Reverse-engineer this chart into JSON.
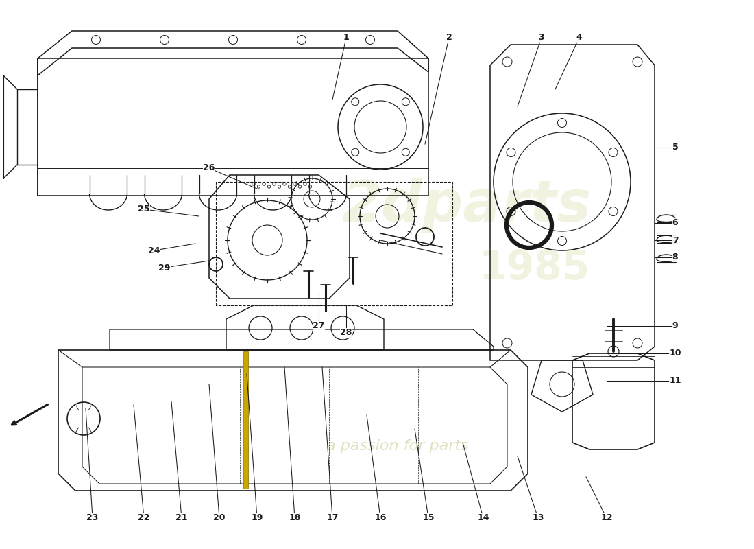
{
  "background_color": "#ffffff",
  "line_color": "#1a1a1a",
  "watermark_color1": "#e8e8c8",
  "watermark_color2": "#d8d8b0",
  "figsize": [
    11.0,
    8.0
  ],
  "dpi": 100,
  "part_labels": [
    [
      1,
      4.85,
      6.55,
      5.05,
      7.45
    ],
    [
      2,
      6.2,
      5.9,
      6.55,
      7.45
    ],
    [
      3,
      7.55,
      6.45,
      7.9,
      7.45
    ],
    [
      4,
      8.1,
      6.7,
      8.45,
      7.45
    ],
    [
      5,
      9.55,
      5.85,
      9.85,
      5.85
    ],
    [
      6,
      9.55,
      4.75,
      9.85,
      4.75
    ],
    [
      7,
      9.55,
      4.5,
      9.85,
      4.5
    ],
    [
      8,
      9.55,
      4.25,
      9.85,
      4.25
    ],
    [
      9,
      8.85,
      3.25,
      9.85,
      3.25
    ],
    [
      10,
      8.85,
      2.85,
      9.85,
      2.85
    ],
    [
      11,
      8.85,
      2.45,
      9.85,
      2.45
    ],
    [
      12,
      8.55,
      1.05,
      8.85,
      0.45
    ],
    [
      13,
      7.55,
      1.35,
      7.85,
      0.45
    ],
    [
      14,
      6.75,
      1.55,
      7.05,
      0.45
    ],
    [
      15,
      6.05,
      1.75,
      6.25,
      0.45
    ],
    [
      16,
      5.35,
      1.95,
      5.55,
      0.45
    ],
    [
      17,
      4.7,
      2.65,
      4.85,
      0.45
    ],
    [
      18,
      4.15,
      2.65,
      4.3,
      0.45
    ],
    [
      19,
      3.6,
      2.55,
      3.75,
      0.45
    ],
    [
      20,
      3.05,
      2.4,
      3.2,
      0.45
    ],
    [
      21,
      2.5,
      2.15,
      2.65,
      0.45
    ],
    [
      22,
      1.95,
      2.1,
      2.1,
      0.45
    ],
    [
      23,
      1.25,
      2.05,
      1.35,
      0.45
    ],
    [
      24,
      2.85,
      4.45,
      2.25,
      4.35
    ],
    [
      25,
      2.9,
      4.85,
      2.1,
      4.95
    ],
    [
      26,
      3.75,
      5.25,
      3.05,
      5.55
    ],
    [
      27,
      4.65,
      3.75,
      4.65,
      3.25
    ],
    [
      28,
      5.05,
      3.55,
      5.05,
      3.15
    ],
    [
      29,
      3.05,
      4.2,
      2.4,
      4.1
    ]
  ]
}
